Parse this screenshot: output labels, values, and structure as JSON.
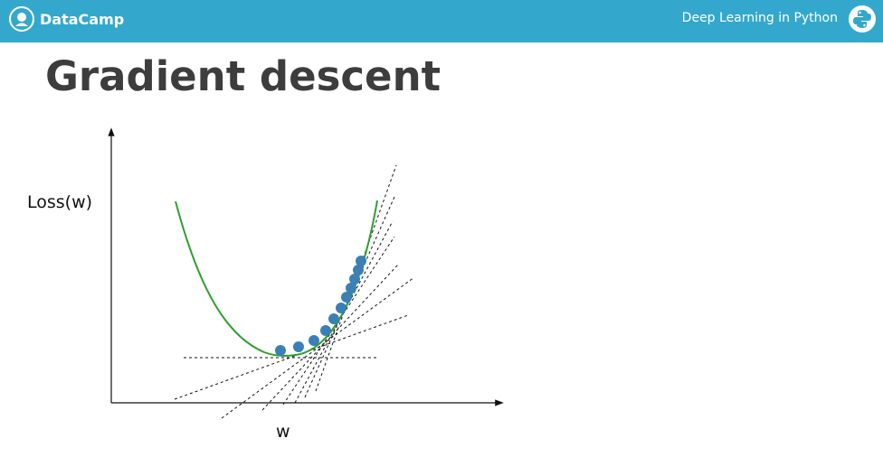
{
  "header": {
    "brand_name": "DataCamp",
    "course_title": "Deep Learning in Python",
    "brand_color": "#33a8cc",
    "brand_icon": "datacamp-logo-icon",
    "course_icon": "python-logo-icon"
  },
  "slide": {
    "title": "Gradient descent"
  },
  "diagram": {
    "y_label": "Loss(w)",
    "x_label": "w",
    "curve_color": "#2ca02c",
    "point_color": "#3a80b4",
    "tangent_style": "dashed",
    "description_elements": [
      "loss-curve",
      "descent-points",
      "tangent-lines",
      "axes"
    ]
  }
}
